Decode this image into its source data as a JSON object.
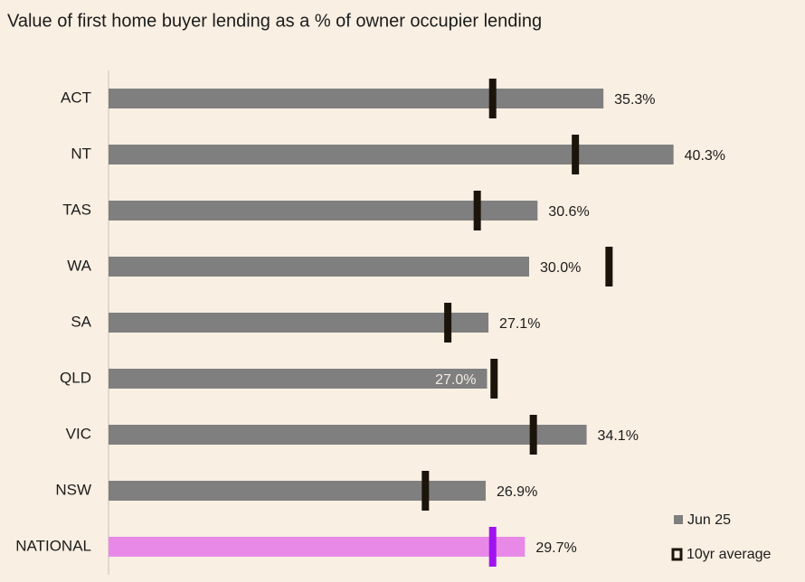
{
  "chart_data": {
    "type": "bar",
    "orientation": "horizontal",
    "title": "Value of first home buyer lending as a % of owner occupier lending",
    "categories": [
      "ACT",
      "NT",
      "TAS",
      "WA",
      "SA",
      "QLD",
      "VIC",
      "NSW",
      "NATIONAL"
    ],
    "series": [
      {
        "name": "Jun 25",
        "color": "#7f7f7f",
        "colors": [
          "#7f7f7f",
          "#7f7f7f",
          "#7f7f7f",
          "#7f7f7f",
          "#7f7f7f",
          "#7f7f7f",
          "#7f7f7f",
          "#7f7f7f",
          "#e889e8"
        ],
        "values": [
          35.3,
          40.3,
          30.6,
          30.0,
          27.1,
          27.0,
          34.1,
          26.9,
          29.7
        ],
        "value_labels": [
          "35.3%",
          "40.3%",
          "30.6%",
          "30.0%",
          "27.1%",
          "27.0%",
          "34.1%",
          "26.9%",
          "29.7%"
        ]
      },
      {
        "name": "10yr average",
        "color": "#1b140b",
        "colors": [
          "#1b140b",
          "#1b140b",
          "#1b140b",
          "#1b140b",
          "#1b140b",
          "#1b140b",
          "#1b140b",
          "#1b140b",
          "#a012f0"
        ],
        "values": [
          27.4,
          33.3,
          26.3,
          35.7,
          24.2,
          27.5,
          30.3,
          22.6,
          27.4
        ]
      }
    ],
    "legend": "bottom-right"
  }
}
